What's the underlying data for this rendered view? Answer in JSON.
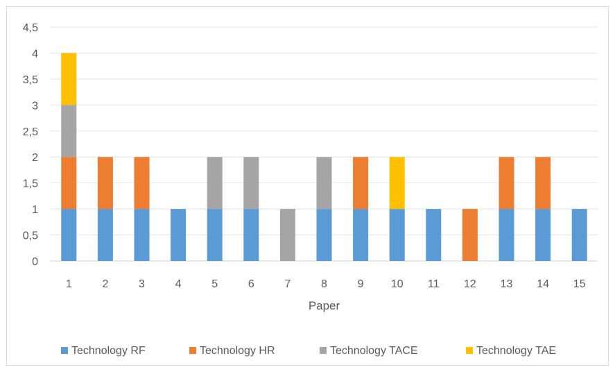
{
  "chart_data": {
    "type": "bar",
    "stacked": true,
    "title": "",
    "xlabel": "Paper",
    "ylabel": "",
    "ylim": [
      0,
      4.5
    ],
    "ytick_step": 0.5,
    "ytick_labels": [
      "0",
      "0,5",
      "1",
      "1,5",
      "2",
      "2,5",
      "3",
      "3,5",
      "4",
      "4,5"
    ],
    "grid": true,
    "legend_position": "bottom",
    "categories": [
      "1",
      "2",
      "3",
      "4",
      "5",
      "6",
      "7",
      "8",
      "9",
      "10",
      "11",
      "12",
      "13",
      "14",
      "15"
    ],
    "series": [
      {
        "name": "Technology RF",
        "color": "#5b9bd5",
        "values": [
          1,
          1,
          1,
          1,
          1,
          1,
          0,
          1,
          1,
          1,
          1,
          0,
          1,
          1,
          1
        ]
      },
      {
        "name": "Technology HR",
        "color": "#ed7d31",
        "values": [
          1,
          1,
          1,
          0,
          0,
          0,
          0,
          0,
          1,
          0,
          0,
          1,
          1,
          1,
          0
        ]
      },
      {
        "name": "Technology TACE",
        "color": "#a5a5a5",
        "values": [
          1,
          0,
          0,
          0,
          1,
          1,
          1,
          1,
          0,
          0,
          0,
          0,
          0,
          0,
          0
        ]
      },
      {
        "name": "Technology TAE",
        "color": "#ffc000",
        "values": [
          1,
          0,
          0,
          0,
          0,
          0,
          0,
          0,
          0,
          1,
          0,
          0,
          0,
          0,
          0
        ]
      }
    ]
  }
}
